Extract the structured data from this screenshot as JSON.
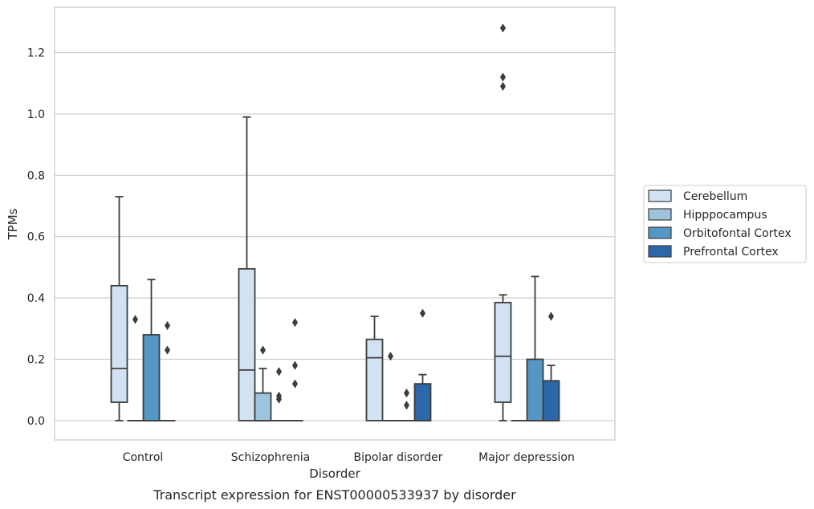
{
  "chart_data": {
    "type": "box",
    "title": "",
    "caption": "Transcript expression for ENST00000533937 by disorder",
    "xlabel": "Disorder",
    "ylabel": "TPMs",
    "ylim": [
      -0.063,
      1.348
    ],
    "yticks": [
      "0.0",
      "0.2",
      "0.4",
      "0.6",
      "0.8",
      "1.0",
      "1.2"
    ],
    "grid": "horizontal",
    "legend_position": "right",
    "categories": [
      "Control",
      "Schizophrenia",
      "Bipolar disorder",
      "Major depression"
    ],
    "series": [
      {
        "name": "Cerebellum",
        "color": "#d3e2f2",
        "boxes": [
          {
            "q1": 0.06,
            "median": 0.17,
            "q3": 0.44,
            "whisker_low": 0.0,
            "whisker_high": 0.73,
            "outliers": []
          },
          {
            "q1": 0.0,
            "median": 0.165,
            "q3": 0.495,
            "whisker_low": 0.0,
            "whisker_high": 0.99,
            "outliers": []
          },
          {
            "q1": 0.0,
            "median": 0.205,
            "q3": 0.265,
            "whisker_low": 0.0,
            "whisker_high": 0.34,
            "outliers": []
          },
          {
            "q1": 0.06,
            "median": 0.21,
            "q3": 0.385,
            "whisker_low": 0.0,
            "whisker_high": 0.41,
            "outliers": [
              1.09,
              1.12,
              1.28
            ]
          }
        ]
      },
      {
        "name": "Hipppocampus",
        "color": "#9dc4dc",
        "boxes": [
          {
            "q1": 0.0,
            "median": 0.0,
            "q3": 0.0,
            "whisker_low": 0.0,
            "whisker_high": 0.0,
            "outliers": [
              0.33
            ]
          },
          {
            "q1": 0.0,
            "median": 0.0,
            "q3": 0.09,
            "whisker_low": 0.0,
            "whisker_high": 0.17,
            "outliers": [
              0.23
            ]
          },
          {
            "q1": 0.0,
            "median": 0.0,
            "q3": 0.0,
            "whisker_low": 0.0,
            "whisker_high": 0.0,
            "outliers": [
              0.21
            ]
          },
          {
            "q1": 0.0,
            "median": 0.0,
            "q3": 0.0,
            "whisker_low": 0.0,
            "whisker_high": 0.0,
            "outliers": []
          }
        ]
      },
      {
        "name": "Orbitofontal Cortex",
        "color": "#5496c4",
        "boxes": [
          {
            "q1": 0.0,
            "median": 0.0,
            "q3": 0.28,
            "whisker_low": 0.0,
            "whisker_high": 0.46,
            "outliers": []
          },
          {
            "q1": 0.0,
            "median": 0.0,
            "q3": 0.0,
            "whisker_low": 0.0,
            "whisker_high": 0.0,
            "outliers": [
              0.07,
              0.08,
              0.16
            ]
          },
          {
            "q1": 0.0,
            "median": 0.0,
            "q3": 0.0,
            "whisker_low": 0.0,
            "whisker_high": 0.0,
            "outliers": [
              0.05,
              0.09
            ]
          },
          {
            "q1": 0.0,
            "median": 0.0,
            "q3": 0.2,
            "whisker_low": 0.0,
            "whisker_high": 0.47,
            "outliers": []
          }
        ]
      },
      {
        "name": "Prefrontal Cortex",
        "color": "#2a68a9",
        "boxes": [
          {
            "q1": 0.0,
            "median": 0.0,
            "q3": 0.0,
            "whisker_low": 0.0,
            "whisker_high": 0.0,
            "outliers": [
              0.23,
              0.31
            ]
          },
          {
            "q1": 0.0,
            "median": 0.0,
            "q3": 0.0,
            "whisker_low": 0.0,
            "whisker_high": 0.0,
            "outliers": [
              0.12,
              0.18,
              0.32
            ]
          },
          {
            "q1": 0.0,
            "median": 0.0,
            "q3": 0.12,
            "whisker_low": 0.0,
            "whisker_high": 0.15,
            "outliers": [
              0.35
            ]
          },
          {
            "q1": 0.0,
            "median": 0.0,
            "q3": 0.13,
            "whisker_low": 0.0,
            "whisker_high": 0.18,
            "outliers": [
              0.34
            ]
          }
        ]
      }
    ]
  }
}
